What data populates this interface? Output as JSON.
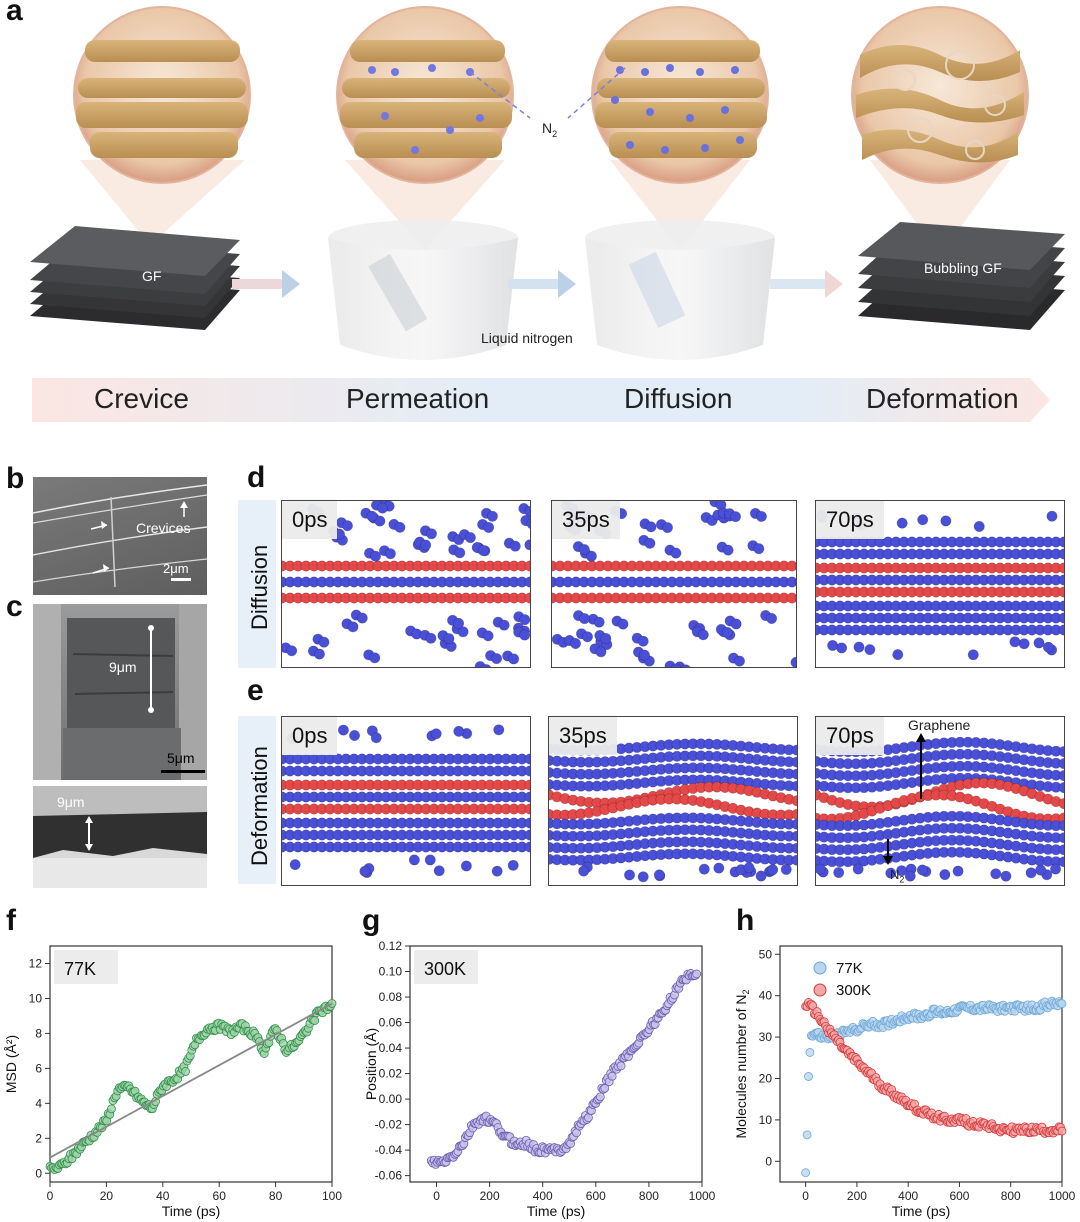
{
  "panels": {
    "a": "a",
    "b": "b",
    "c": "c",
    "d": "d",
    "e": "e",
    "f": "f",
    "g": "g",
    "h": "h"
  },
  "panel_a": {
    "gf_label": "GF",
    "bubbling_label": "Bubbling GF",
    "n2_label": "N",
    "n2_sub": "2",
    "liquid_label": "Liquid nitrogen",
    "stages": [
      "Crevice",
      "Permeation",
      "Diffusion",
      "Deformation"
    ]
  },
  "panel_b": {
    "annotation": "Crevices",
    "scale": "2μm"
  },
  "panel_c": {
    "height_top": "9μm",
    "scale": "5μm",
    "height_bottom": "9μm"
  },
  "panel_d": {
    "side_label": "Diffusion",
    "times": [
      "0ps",
      "35ps",
      "70ps"
    ]
  },
  "panel_e": {
    "side_label": "Deformation",
    "times": [
      "0ps",
      "35ps",
      "70ps"
    ],
    "graphene_label": "Graphene",
    "n2_label": "N",
    "n2_sub": "2"
  },
  "colors": {
    "n2_atom": "#4a4fd8",
    "graphene_atom": "#e54848",
    "gf_brown": "#c9a46a",
    "green": "#2f8f4a",
    "purple": "#6a5fb0",
    "blue": "#6fa8d8",
    "red": "#d9393c"
  },
  "chart_data": [
    {
      "panel": "f",
      "type": "scatter",
      "label": "77K",
      "xlabel": "Time (ps)",
      "ylabel": "MSD (Å²)",
      "xlim": [
        0,
        100
      ],
      "ylim": [
        -0.5,
        13
      ],
      "xticks": [
        "0",
        "20",
        "40",
        "60",
        "80",
        "100"
      ],
      "yticks": [
        "0",
        "2",
        "4",
        "6",
        "8",
        "10",
        "12"
      ],
      "fit_line": {
        "x": [
          0,
          100
        ],
        "y": [
          0.9,
          9.7
        ]
      },
      "series": [
        {
          "x": [
            0,
            4,
            8,
            12,
            16,
            20,
            24,
            28,
            32,
            36,
            40,
            44,
            48,
            52,
            56,
            60,
            64,
            68,
            72,
            76,
            80,
            84,
            88,
            92,
            96,
            100
          ],
          "y": [
            0.2,
            0.4,
            1.0,
            1.7,
            2.3,
            3.0,
            4.8,
            4.9,
            4.2,
            3.7,
            5.0,
            5.4,
            6.0,
            7.6,
            8.3,
            8.4,
            8.1,
            8.4,
            8.0,
            7.0,
            8.3,
            7.0,
            7.5,
            8.5,
            9.3,
            9.6
          ]
        }
      ]
    },
    {
      "panel": "g",
      "type": "scatter",
      "label": "300K",
      "xlabel": "Time (ps)",
      "ylabel": "Position (Å)",
      "xlim": [
        -100,
        1000
      ],
      "ylim": [
        -0.065,
        0.12
      ],
      "xticks": [
        "0",
        "200",
        "400",
        "600",
        "800",
        "1000"
      ],
      "yticks": [
        "-0.06",
        "-0.04",
        "-0.02",
        "0.00",
        "0.02",
        "0.04",
        "0.06",
        "0.08",
        "0.10",
        "0.12"
      ],
      "series": [
        {
          "x": [
            -20,
            20,
            60,
            100,
            140,
            180,
            220,
            260,
            300,
            340,
            380,
            420,
            460,
            500,
            540,
            580,
            620,
            660,
            700,
            740,
            780,
            820,
            860,
            900,
            940,
            980
          ],
          "y": [
            -0.05,
            -0.05,
            -0.045,
            -0.035,
            -0.02,
            -0.015,
            -0.02,
            -0.03,
            -0.035,
            -0.035,
            -0.04,
            -0.04,
            -0.04,
            -0.035,
            -0.02,
            -0.01,
            0.005,
            0.02,
            0.03,
            0.04,
            0.05,
            0.06,
            0.07,
            0.085,
            0.095,
            0.1
          ]
        }
      ]
    },
    {
      "panel": "h",
      "type": "scatter",
      "xlabel": "Time (ps)",
      "ylabel": "Molecules number of N",
      "xlim": [
        -100,
        1000
      ],
      "ylim": [
        -5,
        52
      ],
      "xticks": [
        "0",
        "200",
        "400",
        "600",
        "800",
        "1000"
      ],
      "yticks": [
        "0",
        "10",
        "20",
        "30",
        "40",
        "50"
      ],
      "series": [
        {
          "name": "77K",
          "x": [
            0,
            5,
            10,
            20,
            40,
            60,
            100,
            150,
            200,
            250,
            300,
            350,
            400,
            450,
            500,
            550,
            600,
            650,
            700,
            750,
            800,
            850,
            900,
            950,
            1000
          ],
          "y": [
            -3,
            5,
            20,
            30,
            31,
            30,
            30,
            31,
            32,
            33,
            33,
            34,
            35,
            35,
            36,
            36,
            37,
            37,
            37,
            37,
            37,
            37,
            37,
            38,
            38
          ]
        },
        {
          "name": "300K",
          "x": [
            0,
            25,
            50,
            75,
            100,
            150,
            200,
            250,
            300,
            350,
            400,
            450,
            500,
            550,
            600,
            650,
            700,
            750,
            800,
            850,
            900,
            950,
            1000
          ],
          "y": [
            38,
            37,
            35,
            33,
            31,
            27,
            24,
            21,
            18,
            16,
            14,
            12,
            11,
            10,
            10,
            9,
            9,
            8,
            7.5,
            7.5,
            7.5,
            7.5,
            7.5
          ]
        }
      ]
    }
  ]
}
